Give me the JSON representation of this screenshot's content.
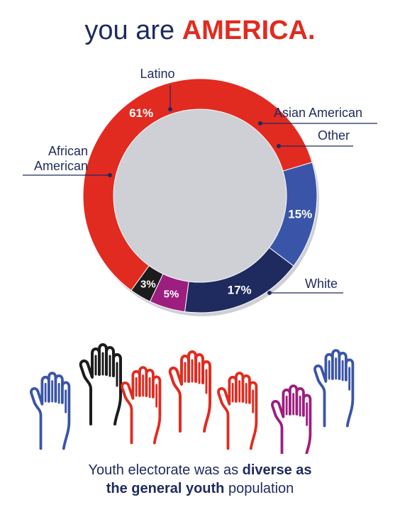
{
  "title": {
    "plain": "you are ",
    "accent": "AMERICA."
  },
  "caption": {
    "part1": "Youth electorate was as ",
    "bold1": "diverse as",
    "bold2": "the general youth",
    "part2": " population"
  },
  "colors": {
    "navy": "#1f2a5e",
    "red": "#e12b20",
    "blue": "#3a55a8",
    "purple": "#9c1e7f",
    "black": "#1c1c1c"
  },
  "chart_data": {
    "type": "pie",
    "donut": true,
    "slices": [
      {
        "label": "White",
        "value": 61,
        "value_label": "61%",
        "color": "#e12b20"
      },
      {
        "label": "African\nAmerican",
        "value": 15,
        "value_label": "15%",
        "color": "#3a55a8"
      },
      {
        "label": "Latino",
        "value": 17,
        "value_label": "17%",
        "color": "#1f2a5e"
      },
      {
        "label": "Asian American",
        "value": 5,
        "value_label": "5%",
        "color": "#9c1e7f"
      },
      {
        "label": "Other",
        "value": 3,
        "value_label": "3%",
        "color": "#1c1c1c"
      }
    ]
  },
  "hands": [
    "blue",
    "black",
    "red",
    "red",
    "red",
    "purple",
    "blue",
    "red"
  ]
}
